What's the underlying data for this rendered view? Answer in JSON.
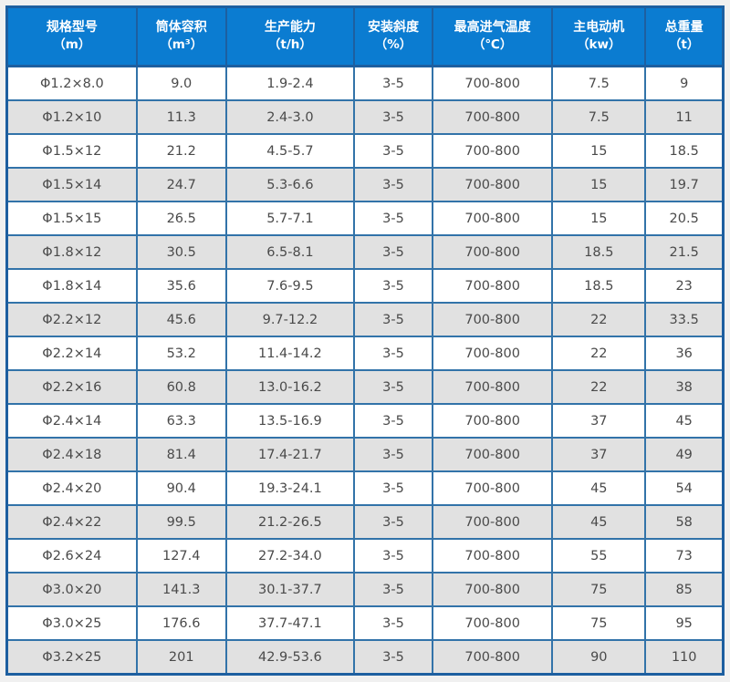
{
  "theme": {
    "page_background": "#f0f0f0",
    "header_background": "#0b7cd1",
    "header_text_color": "#ffffff",
    "border_color": "#3273a9",
    "border_dark_color": "#1d5fa0",
    "row_background": "#ffffff",
    "row_alt_background": "#e1e1e1",
    "cell_text_color": "#4a4a4a"
  },
  "table": {
    "columns": [
      {
        "key": "model",
        "label": "规格型号",
        "unit": "（m）"
      },
      {
        "key": "volume",
        "label": "筒体容积",
        "unit": "（m³）"
      },
      {
        "key": "capacity",
        "label": "生产能力",
        "unit": "（t/h）"
      },
      {
        "key": "slope",
        "label": "安装斜度",
        "unit": "（%）"
      },
      {
        "key": "max-inlet-temp",
        "label": "最高进气温度",
        "unit": "（℃）"
      },
      {
        "key": "main-motor",
        "label": "主电动机",
        "unit": "（kw）"
      },
      {
        "key": "total-weight",
        "label": "总重量",
        "unit": "（t）"
      }
    ],
    "rows": [
      [
        "Φ1.2×8.0",
        "9.0",
        "1.9-2.4",
        "3-5",
        "700-800",
        "7.5",
        "9"
      ],
      [
        "Φ1.2×10",
        "11.3",
        "2.4-3.0",
        "3-5",
        "700-800",
        "7.5",
        "11"
      ],
      [
        "Φ1.5×12",
        "21.2",
        "4.5-5.7",
        "3-5",
        "700-800",
        "15",
        "18.5"
      ],
      [
        "Φ1.5×14",
        "24.7",
        "5.3-6.6",
        "3-5",
        "700-800",
        "15",
        "19.7"
      ],
      [
        "Φ1.5×15",
        "26.5",
        "5.7-7.1",
        "3-5",
        "700-800",
        "15",
        "20.5"
      ],
      [
        "Φ1.8×12",
        "30.5",
        "6.5-8.1",
        "3-5",
        "700-800",
        "18.5",
        "21.5"
      ],
      [
        "Φ1.8×14",
        "35.6",
        "7.6-9.5",
        "3-5",
        "700-800",
        "18.5",
        "23"
      ],
      [
        "Φ2.2×12",
        "45.6",
        "9.7-12.2",
        "3-5",
        "700-800",
        "22",
        "33.5"
      ],
      [
        "Φ2.2×14",
        "53.2",
        "11.4-14.2",
        "3-5",
        "700-800",
        "22",
        "36"
      ],
      [
        "Φ2.2×16",
        "60.8",
        "13.0-16.2",
        "3-5",
        "700-800",
        "22",
        "38"
      ],
      [
        "Φ2.4×14",
        "63.3",
        "13.5-16.9",
        "3-5",
        "700-800",
        "37",
        "45"
      ],
      [
        "Φ2.4×18",
        "81.4",
        "17.4-21.7",
        "3-5",
        "700-800",
        "37",
        "49"
      ],
      [
        "Φ2.4×20",
        "90.4",
        "19.3-24.1",
        "3-5",
        "700-800",
        "45",
        "54"
      ],
      [
        "Φ2.4×22",
        "99.5",
        "21.2-26.5",
        "3-5",
        "700-800",
        "45",
        "58"
      ],
      [
        "Φ2.6×24",
        "127.4",
        "27.2-34.0",
        "3-5",
        "700-800",
        "55",
        "73"
      ],
      [
        "Φ3.0×20",
        "141.3",
        "30.1-37.7",
        "3-5",
        "700-800",
        "75",
        "85"
      ],
      [
        "Φ3.0×25",
        "176.6",
        "37.7-47.1",
        "3-5",
        "700-800",
        "75",
        "95"
      ],
      [
        "Φ3.2×25",
        "201",
        "42.9-53.6",
        "3-5",
        "700-800",
        "90",
        "110"
      ]
    ]
  }
}
